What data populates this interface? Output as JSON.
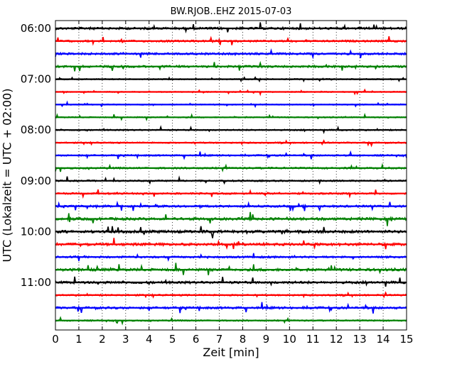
{
  "chart_data": {
    "type": "line",
    "title": "BW.RJOB..EHZ 2015-07-03",
    "xlabel": "Zeit  [min]",
    "ylabel": "UTC (Lokalzeit = UTC + 02:00)",
    "xlim": [
      0,
      15
    ],
    "xticks": [
      "0",
      "1",
      "2",
      "3",
      "4",
      "5",
      "6",
      "7",
      "8",
      "9",
      "10",
      "11",
      "12",
      "13",
      "14",
      "15"
    ],
    "yticks": [
      "06:00",
      "07:00",
      "08:00",
      "09:00",
      "10:00",
      "11:00"
    ],
    "grid": "vertical dotted",
    "trace_colors": [
      "#000000",
      "#ff0000",
      "#0000ff",
      "#008000"
    ],
    "series": [
      {
        "start": "06:00",
        "amplitude": 0.25
      },
      {
        "start": "06:15",
        "amplitude": 0.2
      },
      {
        "start": "06:30",
        "amplitude": 0.22
      },
      {
        "start": "06:45",
        "amplitude": 0.22
      },
      {
        "start": "07:00",
        "amplitude": 0.12
      },
      {
        "start": "07:15",
        "amplitude": 0.1
      },
      {
        "start": "07:30",
        "amplitude": 0.1
      },
      {
        "start": "07:45",
        "amplitude": 0.12
      },
      {
        "start": "08:00",
        "amplitude": 0.14
      },
      {
        "start": "08:15",
        "amplitude": 0.14
      },
      {
        "start": "08:30",
        "amplitude": 0.16
      },
      {
        "start": "08:45",
        "amplitude": 0.18
      },
      {
        "start": "09:00",
        "amplitude": 0.16
      },
      {
        "start": "09:15",
        "amplitude": 0.18
      },
      {
        "start": "09:30",
        "amplitude": 0.22
      },
      {
        "start": "09:45",
        "amplitude": 0.28
      },
      {
        "start": "10:00",
        "amplitude": 0.3
      },
      {
        "start": "10:15",
        "amplitude": 0.28
      },
      {
        "start": "10:30",
        "amplitude": 0.2
      },
      {
        "start": "10:45",
        "amplitude": 0.28
      },
      {
        "start": "11:00",
        "amplitude": 0.26
      },
      {
        "start": "11:15",
        "amplitude": 0.16
      },
      {
        "start": "11:30",
        "amplitude": 0.24
      },
      {
        "start": "11:45",
        "amplitude": 0.14
      }
    ]
  }
}
